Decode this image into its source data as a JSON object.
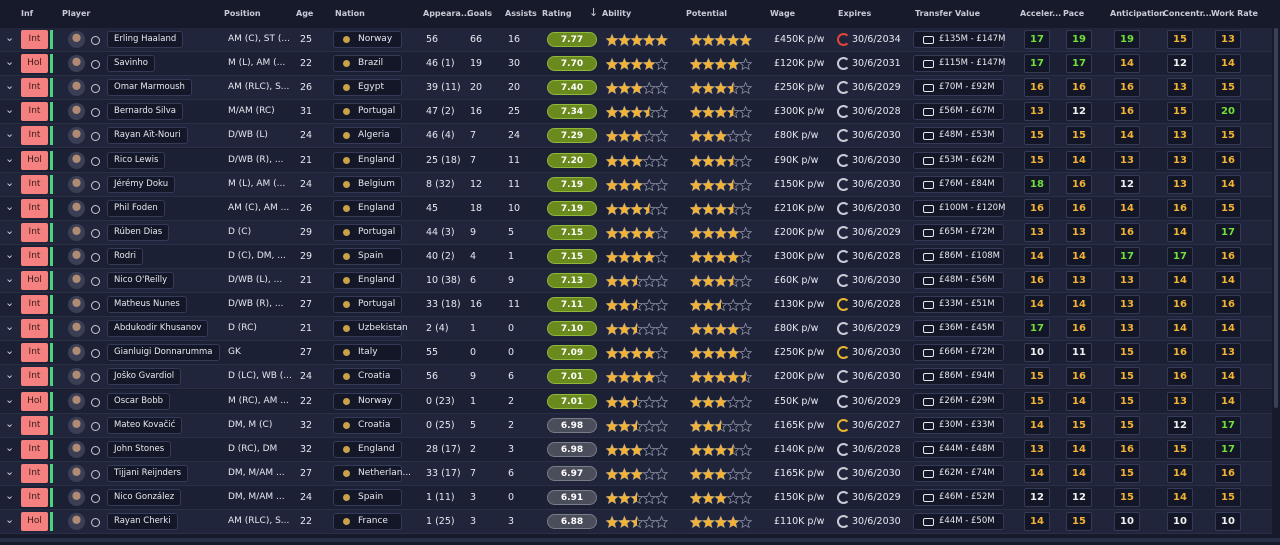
{
  "header": {
    "columns": {
      "inf": "Inf",
      "player": "Player",
      "position": "Position",
      "age": "Age",
      "nation": "Nation",
      "appearances": "Appeara...",
      "goals": "Goals",
      "assists": "Assists",
      "rating": "Rating",
      "ability": "Ability",
      "potential": "Potential",
      "wage": "Wage",
      "expires": "Expires",
      "transfer_value": "Transfer Value",
      "acceleration": "Acceler...",
      "pace": "Pace",
      "anticipation": "Anticipation",
      "concentration": "Concentr...",
      "work_rate": "Work Rate"
    }
  },
  "rows": [
    {
      "inf": "Int",
      "player": "Erling Haaland",
      "position": "AM (C), ST (...",
      "age": 25,
      "nation": "Norway",
      "appearances": "56",
      "goals": 66,
      "assists": 16,
      "rating": "7.77",
      "ability": 5,
      "potential": 5,
      "wage": "£450K p/w",
      "expires": "30/6/2034",
      "expiry_color": "#e0453a",
      "transfer_value": "£135M - £147M",
      "acceleration": 17,
      "pace": 19,
      "anticipation": 19,
      "concentration": 15,
      "work_rate": 13
    },
    {
      "inf": "Hol",
      "player": "Savinho",
      "position": "M (L), AM (...",
      "age": 22,
      "nation": "Brazil",
      "appearances": "46 (1)",
      "goals": 19,
      "assists": 30,
      "rating": "7.70",
      "ability": 4,
      "potential": 4,
      "wage": "£120K p/w",
      "expires": "30/6/2031",
      "expiry_color": "#c9ccd6",
      "transfer_value": "£115M - £147M",
      "acceleration": 17,
      "pace": 17,
      "anticipation": 14,
      "concentration": 12,
      "work_rate": 14
    },
    {
      "inf": "Int",
      "player": "Omar Marmoush",
      "position": "AM (RLC), S...",
      "age": 26,
      "nation": "Egypt",
      "appearances": "39 (11)",
      "goals": 20,
      "assists": 20,
      "rating": "7.40",
      "ability": 3,
      "potential": 3.5,
      "wage": "£250K p/w",
      "expires": "30/6/2029",
      "expiry_color": "#c9ccd6",
      "transfer_value": "£70M - £92M",
      "acceleration": 16,
      "pace": 16,
      "anticipation": 16,
      "concentration": 13,
      "work_rate": 15
    },
    {
      "inf": "Int",
      "player": "Bernardo Silva",
      "position": "M/AM (RC)",
      "age": 31,
      "nation": "Portugal",
      "appearances": "47 (2)",
      "goals": 16,
      "assists": 25,
      "rating": "7.34",
      "ability": 3.5,
      "potential": 3.5,
      "wage": "£300K p/w",
      "expires": "30/6/2028",
      "expiry_color": "#c9ccd6",
      "transfer_value": "£56M - £67M",
      "acceleration": 13,
      "pace": 12,
      "anticipation": 16,
      "concentration": 15,
      "work_rate": 20
    },
    {
      "inf": "Int",
      "player": "Rayan Aït-Nouri",
      "position": "D/WB (L)",
      "age": 24,
      "nation": "Algeria",
      "appearances": "46 (4)",
      "goals": 7,
      "assists": 24,
      "rating": "7.29",
      "ability": 3,
      "potential": 3,
      "wage": "£80K p/w",
      "expires": "30/6/2030",
      "expiry_color": "#c9ccd6",
      "transfer_value": "£48M - £53M",
      "acceleration": 15,
      "pace": 15,
      "anticipation": 14,
      "concentration": 13,
      "work_rate": 15
    },
    {
      "inf": "Hol",
      "player": "Rico Lewis",
      "position": "D/WB (R), ...",
      "age": 21,
      "nation": "England",
      "appearances": "25 (18)",
      "goals": 7,
      "assists": 11,
      "rating": "7.20",
      "ability": 3,
      "potential": 3.5,
      "wage": "£90K p/w",
      "expires": "30/6/2030",
      "expiry_color": "#c9ccd6",
      "transfer_value": "£53M - £62M",
      "acceleration": 15,
      "pace": 14,
      "anticipation": 13,
      "concentration": 13,
      "work_rate": 16
    },
    {
      "inf": "Int",
      "player": "Jérémy Doku",
      "position": "M (L), AM (...",
      "age": 24,
      "nation": "Belgium",
      "appearances": "8 (32)",
      "goals": 12,
      "assists": 11,
      "rating": "7.19",
      "ability": 3,
      "potential": 3.5,
      "wage": "£150K p/w",
      "expires": "30/6/2030",
      "expiry_color": "#c9ccd6",
      "transfer_value": "£76M - £84M",
      "acceleration": 18,
      "pace": 16,
      "anticipation": 12,
      "concentration": 13,
      "work_rate": 14
    },
    {
      "inf": "Int",
      "player": "Phil Foden",
      "position": "AM (C), AM ...",
      "age": 26,
      "nation": "England",
      "appearances": "45",
      "goals": 18,
      "assists": 10,
      "rating": "7.19",
      "ability": 3.5,
      "potential": 3.5,
      "wage": "£210K p/w",
      "expires": "30/6/2030",
      "expiry_color": "#c9ccd6",
      "transfer_value": "£100M - £120M",
      "acceleration": 16,
      "pace": 16,
      "anticipation": 14,
      "concentration": 16,
      "work_rate": 15
    },
    {
      "inf": "Int",
      "player": "Rúben Dias",
      "position": "D (C)",
      "age": 29,
      "nation": "Portugal",
      "appearances": "44 (3)",
      "goals": 9,
      "assists": 5,
      "rating": "7.15",
      "ability": 4,
      "potential": 4,
      "wage": "£200K p/w",
      "expires": "30/6/2029",
      "expiry_color": "#c9ccd6",
      "transfer_value": "£65M - £72M",
      "acceleration": 13,
      "pace": 13,
      "anticipation": 16,
      "concentration": 14,
      "work_rate": 17
    },
    {
      "inf": "Int",
      "player": "Rodri",
      "position": "D (C), DM, ...",
      "age": 29,
      "nation": "Spain",
      "appearances": "40 (2)",
      "goals": 4,
      "assists": 1,
      "rating": "7.15",
      "ability": 4,
      "potential": 4,
      "wage": "£300K p/w",
      "expires": "30/6/2028",
      "expiry_color": "#c9ccd6",
      "transfer_value": "£86M - £108M",
      "acceleration": 14,
      "pace": 14,
      "anticipation": 17,
      "concentration": 17,
      "work_rate": 16
    },
    {
      "inf": "Hol",
      "player": "Nico O'Reilly",
      "position": "D/WB (L), ...",
      "age": 21,
      "nation": "England",
      "appearances": "10 (38)",
      "goals": 6,
      "assists": 9,
      "rating": "7.13",
      "ability": 2.5,
      "potential": 3.5,
      "wage": "£60K p/w",
      "expires": "30/6/2030",
      "expiry_color": "#c9ccd6",
      "transfer_value": "£48M - £56M",
      "acceleration": 16,
      "pace": 13,
      "anticipation": 13,
      "concentration": 14,
      "work_rate": 14
    },
    {
      "inf": "Int",
      "player": "Matheus Nunes",
      "position": "D/WB (R), ...",
      "age": 27,
      "nation": "Portugal",
      "appearances": "33 (18)",
      "goals": 16,
      "assists": 11,
      "rating": "7.11",
      "ability": 2.5,
      "potential": 2.5,
      "wage": "£130K p/w",
      "expires": "30/6/2028",
      "expiry_color": "#e8b32e",
      "transfer_value": "£33M - £51M",
      "acceleration": 14,
      "pace": 14,
      "anticipation": 13,
      "concentration": 16,
      "work_rate": 16
    },
    {
      "inf": "Int",
      "player": "Abdukodir Khusanov",
      "position": "D (RC)",
      "age": 21,
      "nation": "Uzbekistan",
      "appearances": "2 (4)",
      "goals": 1,
      "assists": 0,
      "rating": "7.10",
      "ability": 2.5,
      "potential": 4,
      "wage": "£80K p/w",
      "expires": "30/6/2029",
      "expiry_color": "#c9ccd6",
      "transfer_value": "£36M - £45M",
      "acceleration": 17,
      "pace": 16,
      "anticipation": 13,
      "concentration": 14,
      "work_rate": 14
    },
    {
      "inf": "Int",
      "player": "Gianluigi Donnarumma",
      "position": "GK",
      "age": 27,
      "nation": "Italy",
      "appearances": "55",
      "goals": 0,
      "assists": 0,
      "rating": "7.09",
      "ability": 4,
      "potential": 4,
      "wage": "£250K p/w",
      "expires": "30/6/2030",
      "expiry_color": "#e8b32e",
      "transfer_value": "£66M - £72M",
      "acceleration": 10,
      "pace": 11,
      "anticipation": 15,
      "concentration": 16,
      "work_rate": 13
    },
    {
      "inf": "Int",
      "player": "Joško Gvardiol",
      "position": "D (LC), WB (...",
      "age": 24,
      "nation": "Croatia",
      "appearances": "56",
      "goals": 9,
      "assists": 6,
      "rating": "7.01",
      "ability": 4,
      "potential": 4.5,
      "wage": "£200K p/w",
      "expires": "30/6/2030",
      "expiry_color": "#c9ccd6",
      "transfer_value": "£86M - £94M",
      "acceleration": 15,
      "pace": 16,
      "anticipation": 15,
      "concentration": 16,
      "work_rate": 14
    },
    {
      "inf": "Hol",
      "player": "Oscar Bobb",
      "position": "M (RC), AM ...",
      "age": 22,
      "nation": "Norway",
      "appearances": "0 (23)",
      "goals": 1,
      "assists": 2,
      "rating": "7.01",
      "ability": 2.5,
      "potential": 3,
      "wage": "£50K p/w",
      "expires": "30/6/2029",
      "expiry_color": "#c9ccd6",
      "transfer_value": "£26M - £29M",
      "acceleration": 15,
      "pace": 14,
      "anticipation": 15,
      "concentration": 13,
      "work_rate": 14
    },
    {
      "inf": "Int",
      "player": "Mateo Kovačić",
      "position": "DM, M (C)",
      "age": 32,
      "nation": "Croatia",
      "appearances": "0 (25)",
      "goals": 5,
      "assists": 2,
      "rating": "6.98",
      "ability": 2.5,
      "potential": 2.5,
      "wage": "£165K p/w",
      "expires": "30/6/2027",
      "expiry_color": "#e8b32e",
      "transfer_value": "£30M - £33M",
      "acceleration": 14,
      "pace": 15,
      "anticipation": 15,
      "concentration": 12,
      "work_rate": 17
    },
    {
      "inf": "Int",
      "player": "John Stones",
      "position": "D (RC), DM",
      "age": 32,
      "nation": "England",
      "appearances": "28 (17)",
      "goals": 2,
      "assists": 3,
      "rating": "6.98",
      "ability": 3,
      "potential": 3.5,
      "wage": "£140K p/w",
      "expires": "30/6/2028",
      "expiry_color": "#c9ccd6",
      "transfer_value": "£44M - £48M",
      "acceleration": 13,
      "pace": 14,
      "anticipation": 16,
      "concentration": 15,
      "work_rate": 17
    },
    {
      "inf": "Int",
      "player": "Tijjani Reijnders",
      "position": "DM, M/AM ...",
      "age": 27,
      "nation": "Netherlan...",
      "appearances": "33 (17)",
      "goals": 7,
      "assists": 6,
      "rating": "6.97",
      "ability": 3,
      "potential": 3,
      "wage": "£165K p/w",
      "expires": "30/6/2030",
      "expiry_color": "#c9ccd6",
      "transfer_value": "£62M - £74M",
      "acceleration": 14,
      "pace": 14,
      "anticipation": 15,
      "concentration": 14,
      "work_rate": 16
    },
    {
      "inf": "Int",
      "player": "Nico González",
      "position": "DM, M/AM ...",
      "age": 24,
      "nation": "Spain",
      "appearances": "1 (11)",
      "goals": 3,
      "assists": 0,
      "rating": "6.91",
      "ability": 2.5,
      "potential": 3,
      "wage": "£150K p/w",
      "expires": "30/6/2029",
      "expiry_color": "#c9ccd6",
      "transfer_value": "£46M - £52M",
      "acceleration": 12,
      "pace": 12,
      "anticipation": 15,
      "concentration": 14,
      "work_rate": 15
    },
    {
      "inf": "Hol",
      "player": "Rayan Cherki",
      "position": "AM (RLC), S...",
      "age": 22,
      "nation": "France",
      "appearances": "1 (25)",
      "goals": 3,
      "assists": 3,
      "rating": "6.88",
      "ability": 2.5,
      "potential": 4,
      "wage": "£110K p/w",
      "expires": "30/6/2030",
      "expiry_color": "#c9ccd6",
      "transfer_value": "£44M - £50M",
      "acceleration": 14,
      "pace": 15,
      "anticipation": 10,
      "concentration": 10,
      "work_rate": 10
    }
  ]
}
